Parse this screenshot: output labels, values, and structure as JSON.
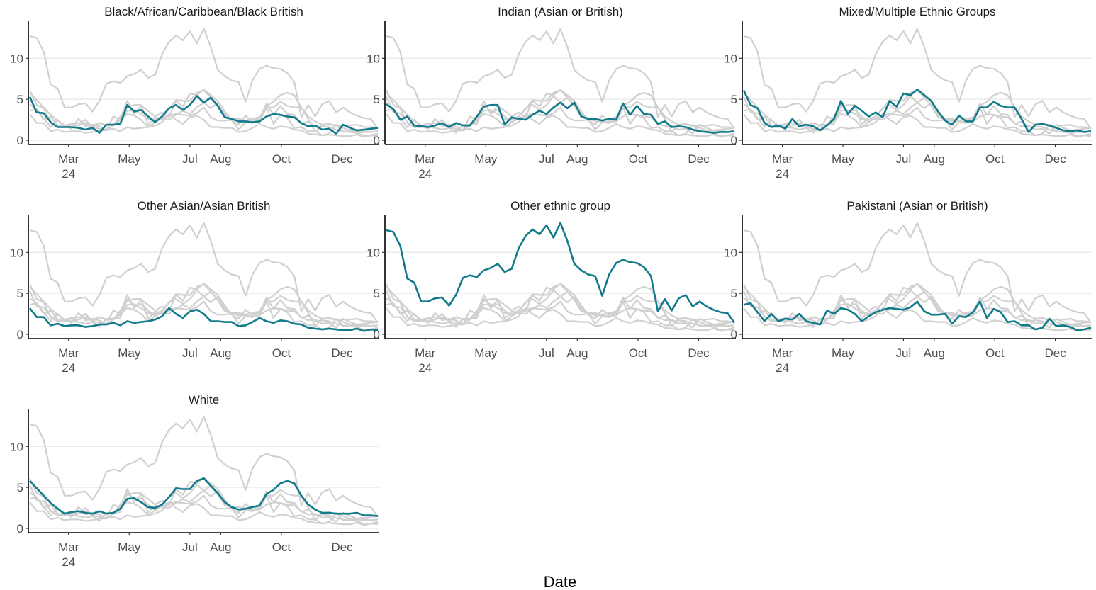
{
  "chart_data": {
    "type": "line",
    "xlabel": "Date",
    "ylabel": "",
    "ylim": [
      0,
      14
    ],
    "yticks": [
      0,
      5,
      10
    ],
    "xtick_labels": [
      "Mar\n24",
      "May",
      "Jul",
      "Aug",
      "Oct",
      "Dec"
    ],
    "grid": "horizontal major gridlines",
    "legend": "none",
    "facets": [
      "Black/African/Caribbean/Black British",
      "Indian (Asian or British)",
      "Mixed/Multiple Ethnic Groups",
      "Other Asian/Asian British",
      "Other ethnic group",
      "Pakistani (Asian or British)",
      "White"
    ],
    "x": [
      "2024-01-22",
      "2024-01-29",
      "2024-02-05",
      "2024-02-12",
      "2024-02-19",
      "2024-02-26",
      "2024-03-04",
      "2024-03-11",
      "2024-03-18",
      "2024-03-25",
      "2024-04-01",
      "2024-04-08",
      "2024-04-15",
      "2024-04-22",
      "2024-04-29",
      "2024-05-06",
      "2024-05-13",
      "2024-05-20",
      "2024-05-27",
      "2024-06-03",
      "2024-06-10",
      "2024-06-17",
      "2024-06-24",
      "2024-07-01",
      "2024-07-08",
      "2024-07-15",
      "2024-07-22",
      "2024-07-29",
      "2024-08-05",
      "2024-08-12",
      "2024-08-19",
      "2024-08-26",
      "2024-09-02",
      "2024-09-09",
      "2024-09-16",
      "2024-09-23",
      "2024-09-30",
      "2024-10-07",
      "2024-10-14",
      "2024-10-21",
      "2024-10-28",
      "2024-11-04",
      "2024-11-11",
      "2024-11-18",
      "2024-11-25",
      "2024-12-02",
      "2024-12-09",
      "2024-12-16",
      "2024-12-23",
      "2024-12-30",
      "2025-01-06"
    ],
    "series": [
      {
        "name": "Black/African/Caribbean/Black British",
        "values": [
          5.3,
          3.4,
          3.3,
          2.2,
          1.6,
          1.6,
          1.6,
          1.5,
          1.3,
          1.5,
          0.9,
          1.9,
          1.9,
          2.0,
          4.3,
          3.5,
          3.7,
          2.9,
          2.2,
          2.9,
          3.9,
          4.3,
          3.7,
          4.3,
          5.4,
          4.6,
          5.2,
          4.2,
          2.8,
          2.6,
          2.3,
          2.3,
          2.2,
          2.3,
          2.9,
          3.2,
          3.1,
          2.9,
          2.8,
          2.1,
          1.7,
          1.8,
          1.3,
          1.4,
          0.8,
          1.9,
          1.5,
          1.2,
          1.3,
          1.4,
          1.5
        ]
      },
      {
        "name": "Indian (Asian or British)",
        "values": [
          4.4,
          3.8,
          2.5,
          2.9,
          1.8,
          1.7,
          1.6,
          1.8,
          2.1,
          1.6,
          2.1,
          1.8,
          1.8,
          2.9,
          4.1,
          4.3,
          4.3,
          1.9,
          2.8,
          2.6,
          2.5,
          3.1,
          3.6,
          3.2,
          4.0,
          4.6,
          3.9,
          4.6,
          2.9,
          2.6,
          2.6,
          2.4,
          2.6,
          2.5,
          4.5,
          3.1,
          4.2,
          3.2,
          3.1,
          2.0,
          2.3,
          1.6,
          1.7,
          1.6,
          1.3,
          1.1,
          1.0,
          0.9,
          1.0,
          1.0,
          1.1
        ]
      },
      {
        "name": "Mixed/Multiple Ethnic Groups",
        "values": [
          6.1,
          4.3,
          3.9,
          2.1,
          1.6,
          1.8,
          1.4,
          2.6,
          1.7,
          1.9,
          1.7,
          1.2,
          1.8,
          2.6,
          4.8,
          3.2,
          4.2,
          3.6,
          2.9,
          3.4,
          2.8,
          4.8,
          4.1,
          5.7,
          5.5,
          6.2,
          5.5,
          4.8,
          3.5,
          2.4,
          1.9,
          3.0,
          2.3,
          2.3,
          4.0,
          4.0,
          4.7,
          4.2,
          4.0,
          4.0,
          2.6,
          1.0,
          1.9,
          2.0,
          1.8,
          1.5,
          1.2,
          1.1,
          1.2,
          1.0,
          1.1
        ]
      },
      {
        "name": "Other Asian/Asian British",
        "values": [
          3.2,
          2.1,
          2.1,
          1.1,
          1.3,
          1.0,
          1.1,
          1.1,
          0.9,
          1.0,
          1.2,
          1.2,
          1.4,
          1.1,
          1.6,
          1.4,
          1.5,
          1.6,
          1.8,
          2.2,
          3.2,
          2.5,
          2.0,
          2.8,
          3.0,
          2.5,
          1.6,
          1.6,
          1.5,
          1.5,
          1.0,
          1.1,
          1.5,
          2.0,
          1.6,
          1.4,
          1.7,
          1.6,
          1.3,
          1.2,
          0.8,
          0.7,
          0.6,
          0.7,
          0.6,
          0.5,
          0.5,
          0.7,
          0.4,
          0.6,
          0.5
        ]
      },
      {
        "name": "Other ethnic group",
        "values": [
          12.7,
          12.5,
          10.8,
          6.8,
          6.3,
          4.0,
          4.0,
          4.4,
          4.5,
          3.5,
          4.8,
          6.9,
          7.2,
          7.0,
          7.8,
          8.1,
          8.6,
          7.6,
          8.0,
          10.5,
          12.0,
          12.8,
          12.2,
          13.3,
          11.8,
          13.6,
          11.4,
          8.6,
          7.8,
          7.3,
          7.1,
          4.7,
          7.3,
          8.7,
          9.1,
          8.8,
          8.7,
          8.2,
          7.1,
          2.8,
          4.3,
          2.9,
          4.4,
          4.8,
          3.4,
          4.0,
          3.4,
          3.0,
          2.7,
          2.6,
          1.4
        ]
      },
      {
        "name": "Pakistani (Asian or British)",
        "values": [
          3.6,
          3.8,
          2.7,
          1.6,
          2.5,
          1.6,
          1.9,
          1.8,
          2.5,
          1.6,
          1.4,
          1.2,
          2.9,
          2.5,
          3.2,
          3.0,
          2.5,
          1.6,
          2.2,
          2.7,
          3.0,
          3.2,
          3.1,
          3.0,
          3.3,
          4.0,
          2.8,
          2.4,
          2.4,
          2.5,
          1.3,
          2.2,
          2.1,
          2.7,
          4.0,
          2.0,
          3.1,
          2.7,
          1.5,
          1.6,
          1.1,
          1.1,
          0.6,
          0.8,
          1.9,
          1.0,
          1.1,
          0.9,
          0.5,
          0.6,
          0.8
        ]
      },
      {
        "name": "White",
        "values": [
          5.8,
          4.9,
          4.0,
          3.1,
          2.4,
          1.8,
          2.0,
          2.1,
          1.9,
          1.8,
          2.1,
          1.8,
          1.9,
          2.4,
          3.6,
          3.7,
          3.2,
          2.6,
          2.5,
          2.9,
          3.8,
          4.9,
          4.8,
          4.8,
          5.8,
          6.1,
          5.2,
          4.3,
          3.2,
          2.6,
          2.3,
          2.4,
          2.6,
          2.8,
          4.2,
          4.7,
          5.5,
          5.8,
          5.5,
          4.0,
          2.9,
          2.3,
          1.9,
          1.9,
          1.8,
          1.8,
          1.8,
          1.9,
          1.6,
          1.6,
          1.5
        ]
      }
    ],
    "colors": {
      "highlight": "#117a8b",
      "background_series": "#d0d0d0",
      "grid": "#ebebeb",
      "axis": "#000000"
    }
  }
}
